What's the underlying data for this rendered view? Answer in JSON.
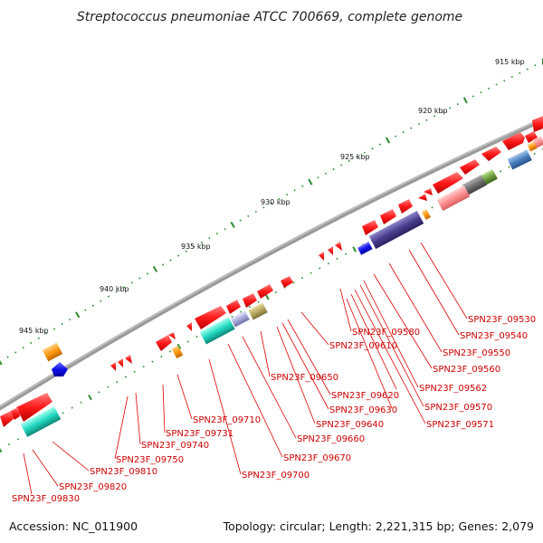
{
  "title": "Streptococcus pneumoniae ATCC 700669, complete genome",
  "footer": {
    "accession": "Accession: NC_011900",
    "summary": "Topology: circular; Length: 2,221,315 bp; Genes: 2,079"
  },
  "kbp_labels": [
    "915 kbp",
    "920 kbp",
    "925 kbp",
    "930 kbp",
    "935 kbp",
    "940 kbp",
    "945 kbp"
  ],
  "gene_labels": [
    "SPN23F_09530",
    "SPN23F_09540",
    "SPN23F_09550",
    "SPN23F_09560",
    "SPN23F_09562",
    "SPN23F_09570",
    "SPN23F_09571",
    "SPN23F_09580",
    "SPN23F_09610",
    "SPN23F_09620",
    "SPN23F_09630",
    "SPN23F_09640",
    "SPN23F_09650",
    "SPN23F_09660",
    "SPN23F_09670",
    "SPN23F_09700",
    "SPN23F_09710",
    "SPN23F_09731",
    "SPN23F_09740",
    "SPN23F_09750",
    "SPN23F_09810",
    "SPN23F_09820",
    "SPN23F_09830"
  ],
  "colors": {
    "cds": "#ff1a1a",
    "backbone": "#8c8c8c",
    "tick": "#2e8b2e",
    "label_line": "#e00000"
  }
}
